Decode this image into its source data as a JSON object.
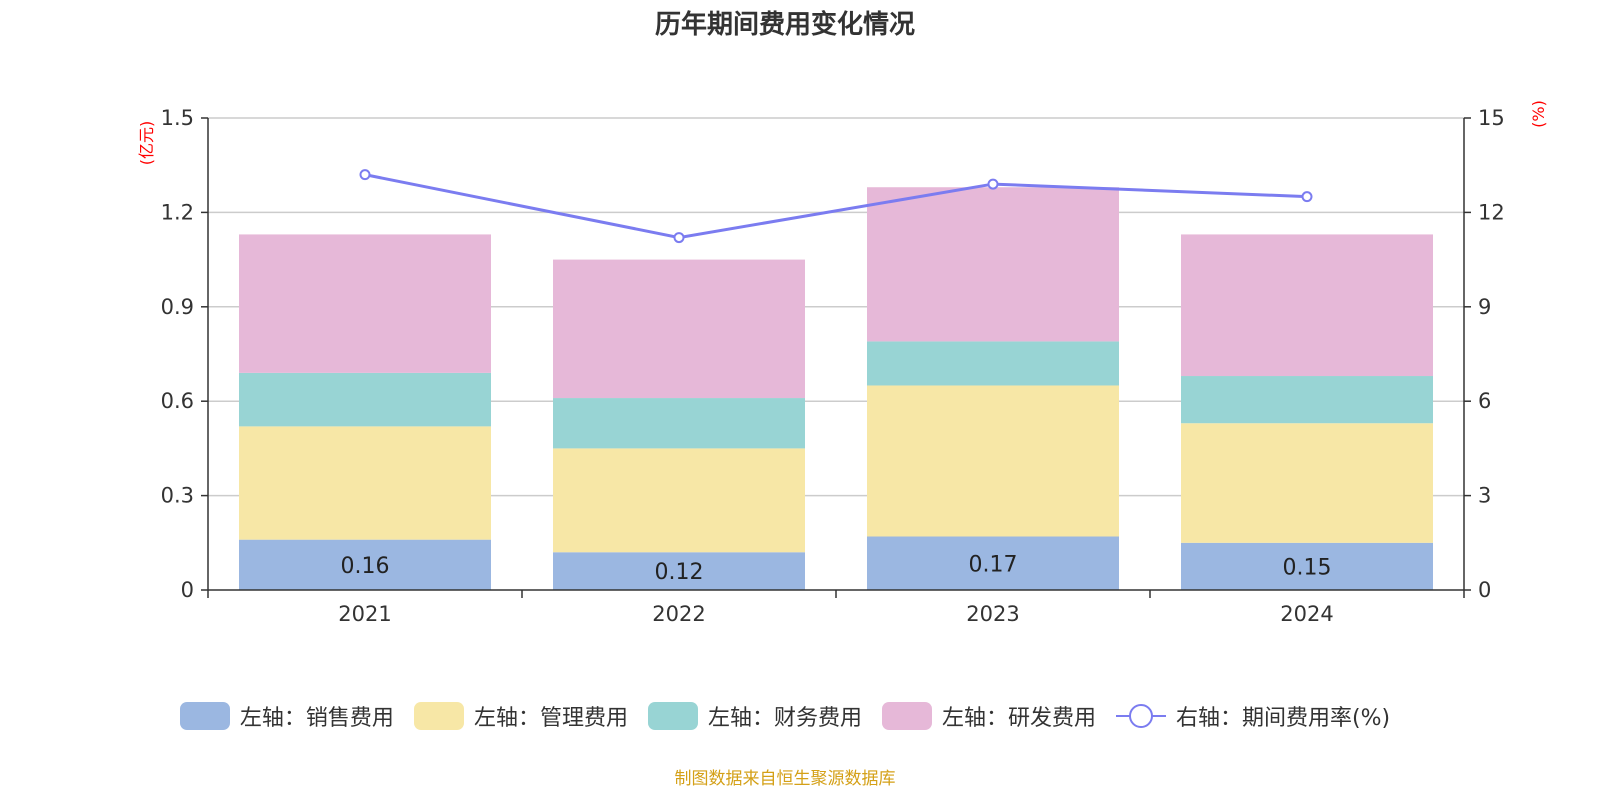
{
  "chart_data": {
    "type": "bar",
    "stacked": true,
    "title": "历年期间费用变化情况",
    "categories": [
      "2021",
      "2022",
      "2023",
      "2024"
    ],
    "left_axis": {
      "unit_label": "(亿元)",
      "ylim": [
        0,
        1.5
      ],
      "ticks": [
        "0",
        "0.3",
        "0.6",
        "0.9",
        "1.2",
        "1.5"
      ]
    },
    "right_axis": {
      "unit_label": "(%)",
      "ylim": [
        0,
        15
      ],
      "ticks": [
        "0",
        "3",
        "6",
        "9",
        "12",
        "15"
      ]
    },
    "series": [
      {
        "name": "左轴：销售费用",
        "axis": "left",
        "kind": "bar",
        "color": "#9bb7e1",
        "values": [
          0.16,
          0.12,
          0.17,
          0.15
        ],
        "labels": [
          "0.16",
          "0.12",
          "0.17",
          "0.15"
        ]
      },
      {
        "name": "左轴：管理费用",
        "axis": "left",
        "kind": "bar",
        "color": "#f7e7a6",
        "values": [
          0.36,
          0.33,
          0.48,
          0.38
        ]
      },
      {
        "name": "左轴：财务费用",
        "axis": "left",
        "kind": "bar",
        "color": "#98d4d4",
        "values": [
          0.17,
          0.16,
          0.14,
          0.15
        ]
      },
      {
        "name": "左轴：研发费用",
        "axis": "left",
        "kind": "bar",
        "color": "#e6b8d8",
        "values": [
          0.44,
          0.44,
          0.49,
          0.45
        ]
      },
      {
        "name": "右轴：期间费用率(%)",
        "axis": "right",
        "kind": "line",
        "color": "#7b7cf0",
        "values": [
          13.2,
          11.2,
          12.9,
          12.5
        ]
      }
    ],
    "legend_position": "bottom",
    "grid": true
  },
  "source_note": "制图数据来自恒生聚源数据库"
}
